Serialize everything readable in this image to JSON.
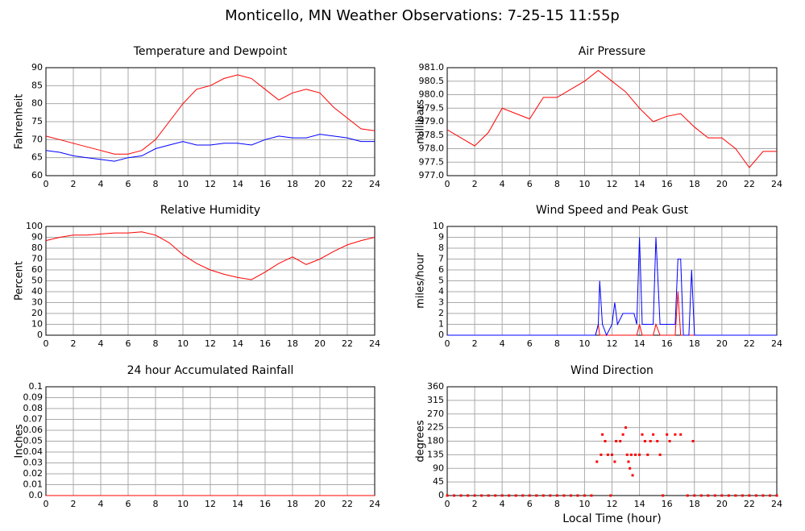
{
  "title": "Monticello, MN Weather Observations: 7-25-15 11:55p",
  "chart_data": [
    {
      "type": "line",
      "title": "Temperature and Dewpoint",
      "ylabel": "Fahrenheit",
      "x": [
        0,
        1,
        2,
        3,
        4,
        5,
        6,
        7,
        8,
        9,
        10,
        11,
        12,
        13,
        14,
        15,
        16,
        17,
        18,
        19,
        20,
        21,
        22,
        23,
        24
      ],
      "series": [
        {
          "color": "#ff0000",
          "values": [
            71,
            70,
            69,
            68,
            67,
            66,
            66,
            67,
            70,
            75,
            80,
            84,
            85,
            87,
            88,
            87,
            84,
            81,
            83,
            84,
            83,
            79,
            76,
            73,
            72.5
          ]
        },
        {
          "color": "#0000ff",
          "values": [
            67,
            66.5,
            65.5,
            65,
            64.5,
            64,
            65,
            65.5,
            67.5,
            68.5,
            69.5,
            68.5,
            68.5,
            69,
            69,
            68.5,
            70,
            71,
            70.5,
            70.5,
            71.5,
            71,
            70.5,
            69.5,
            69.5
          ]
        }
      ],
      "xlim": [
        0,
        24
      ],
      "xticks": [
        0,
        2,
        4,
        6,
        8,
        10,
        12,
        14,
        16,
        18,
        20,
        22,
        24
      ],
      "ylim": [
        60,
        90
      ],
      "yticks": [
        60,
        65,
        70,
        75,
        80,
        85,
        90
      ],
      "grid": true
    },
    {
      "type": "line",
      "title": "Air Pressure",
      "ylabel": "millibars",
      "x": [
        0,
        1,
        2,
        3,
        4,
        5,
        6,
        7,
        8,
        9,
        10,
        11,
        12,
        13,
        14,
        15,
        16,
        17,
        18,
        19,
        20,
        21,
        22,
        23,
        24
      ],
      "series": [
        {
          "color": "#ff0000",
          "values": [
            978.7,
            978.4,
            978.1,
            978.6,
            979.5,
            979.3,
            979.1,
            979.9,
            979.9,
            980.2,
            980.5,
            980.9,
            980.5,
            980.1,
            979.5,
            979.0,
            979.2,
            979.3,
            978.8,
            978.4,
            978.4,
            978.0,
            977.3,
            977.9,
            977.9
          ]
        }
      ],
      "xlim": [
        0,
        24
      ],
      "xticks": [
        0,
        2,
        4,
        6,
        8,
        10,
        12,
        14,
        16,
        18,
        20,
        22,
        24
      ],
      "ylim": [
        977,
        981
      ],
      "yticks": [
        {
          "value": 977,
          "label": "977.0"
        },
        {
          "value": 977.5,
          "label": "977.5"
        },
        {
          "value": 978,
          "label": "978.0"
        },
        {
          "value": 978.5,
          "label": "978.5"
        },
        {
          "value": 979,
          "label": "979.0"
        },
        {
          "value": 979.5,
          "label": "979.5"
        },
        {
          "value": 980,
          "label": "980.0"
        },
        {
          "value": 980.5,
          "label": "980.5"
        },
        {
          "value": 981,
          "label": "981.0"
        }
      ],
      "grid": true
    },
    {
      "type": "line",
      "title": "Relative Humidity",
      "ylabel": "Percent",
      "x": [
        0,
        1,
        2,
        3,
        4,
        5,
        6,
        7,
        8,
        9,
        10,
        11,
        12,
        13,
        14,
        15,
        16,
        17,
        18,
        19,
        20,
        21,
        22,
        23,
        24
      ],
      "series": [
        {
          "color": "#ff0000",
          "values": [
            87,
            90,
            92,
            92,
            93,
            94,
            94,
            95,
            92,
            85,
            74,
            66,
            60,
            56,
            53,
            51,
            58,
            66,
            72,
            65,
            70,
            77,
            83,
            87,
            90
          ]
        }
      ],
      "xlim": [
        0,
        24
      ],
      "xticks": [
        0,
        2,
        4,
        6,
        8,
        10,
        12,
        14,
        16,
        18,
        20,
        22,
        24
      ],
      "ylim": [
        0,
        100
      ],
      "yticks": [
        0,
        10,
        20,
        30,
        40,
        50,
        60,
        70,
        80,
        90,
        100
      ],
      "grid": true
    },
    {
      "type": "line",
      "title": "Wind Speed and Peak Gust",
      "ylabel": "miles/hour",
      "x": [
        0,
        10.8,
        11.0,
        11.1,
        11.3,
        11.6,
        12,
        12.2,
        12.4,
        12.8,
        13.2,
        13.6,
        13.8,
        14.0,
        14.2,
        14.5,
        15.0,
        15.2,
        15.5,
        16.0,
        16.6,
        16.8,
        17.0,
        17.2,
        17.6,
        17.8,
        18.0,
        24
      ],
      "series": [
        {
          "color": "#ff0000",
          "values": [
            0,
            0,
            1,
            0,
            0,
            0,
            0,
            0,
            0,
            0,
            0,
            0,
            0,
            1,
            0,
            0,
            0,
            1,
            0,
            0,
            0,
            4,
            0,
            0,
            0,
            0,
            0,
            0
          ]
        },
        {
          "color": "#0000ff",
          "values": [
            0,
            0,
            1,
            5,
            1,
            0,
            1,
            3,
            1,
            2,
            2,
            2,
            1,
            9,
            1,
            1,
            1,
            9,
            1,
            1,
            1,
            7,
            7,
            0,
            0,
            6,
            0,
            0
          ]
        }
      ],
      "xlim": [
        0,
        24
      ],
      "xticks": [
        0,
        2,
        4,
        6,
        8,
        10,
        12,
        14,
        16,
        18,
        20,
        22,
        24
      ],
      "ylim": [
        0,
        10
      ],
      "yticks": [
        0,
        1,
        2,
        3,
        4,
        5,
        6,
        7,
        8,
        9,
        10
      ],
      "grid": true
    },
    {
      "type": "line",
      "title": "24 hour Accumulated Rainfall",
      "ylabel": "Inches",
      "x": [
        0,
        24
      ],
      "series": [
        {
          "color": "#ff0000",
          "values": [
            0,
            0
          ]
        }
      ],
      "xlim": [
        0,
        24
      ],
      "xticks": [
        0,
        2,
        4,
        6,
        8,
        10,
        12,
        14,
        16,
        18,
        20,
        22,
        24
      ],
      "ylim": [
        0,
        0.1
      ],
      "yticks": [
        {
          "value": 0,
          "label": "0.0"
        },
        0.01,
        0.02,
        0.03,
        0.04,
        0.05,
        0.06,
        0.07,
        0.08,
        0.09,
        0.1
      ],
      "grid": true
    },
    {
      "type": "scatter",
      "title": "Wind Direction",
      "ylabel": "degrees",
      "xlabel": "Local Time (hour)",
      "x": [
        0,
        0.5,
        1,
        1.5,
        2,
        2.5,
        3,
        3.5,
        4,
        4.5,
        5,
        5.5,
        6,
        6.5,
        7,
        7.5,
        8,
        8.5,
        9,
        9.5,
        10,
        10.5,
        10.9,
        11.2,
        11.3,
        11.5,
        11.7,
        11.9,
        12.0,
        12.2,
        12.3,
        12.6,
        12.8,
        13.0,
        13.1,
        13.2,
        13.3,
        13.4,
        13.5,
        13.7,
        14.0,
        14.2,
        14.4,
        14.6,
        14.8,
        15.0,
        15.3,
        15.5,
        15.7,
        16.0,
        16.2,
        16.6,
        17.0,
        17.5,
        17.9,
        18.0,
        18.5,
        19,
        19.5,
        20,
        20.5,
        21,
        21.5,
        22,
        22.5,
        23,
        23.5,
        24
      ],
      "y": [
        0,
        0,
        0,
        0,
        0,
        0,
        0,
        0,
        0,
        0,
        0,
        0,
        0,
        0,
        0,
        0,
        0,
        0,
        0,
        0,
        0,
        0,
        112,
        135,
        202,
        180,
        135,
        0,
        135,
        112,
        180,
        180,
        202,
        225,
        135,
        112,
        90,
        135,
        67,
        135,
        135,
        202,
        180,
        135,
        180,
        202,
        180,
        135,
        0,
        202,
        180,
        202,
        202,
        0,
        180,
        0,
        0,
        0,
        0,
        0,
        0,
        0,
        0,
        0,
        0,
        0,
        0,
        0
      ],
      "color": "#ff0000",
      "xlim": [
        0,
        24
      ],
      "xticks": [
        0,
        2,
        4,
        6,
        8,
        10,
        12,
        14,
        16,
        18,
        20,
        22,
        24
      ],
      "ylim": [
        0,
        360
      ],
      "yticks": [
        0,
        45,
        90,
        135,
        180,
        225,
        270,
        315,
        360
      ],
      "grid": true
    }
  ]
}
